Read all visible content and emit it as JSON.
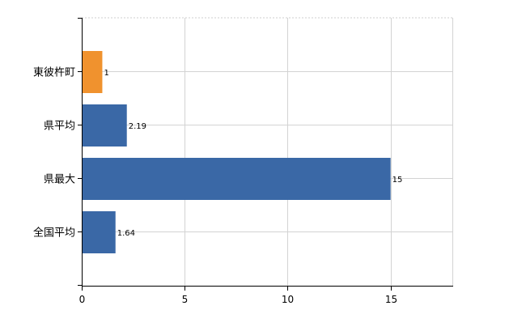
{
  "chart_data": {
    "type": "bar",
    "orientation": "horizontal",
    "categories": [
      "東彼杵町",
      "県平均",
      "県最大",
      "全国平均"
    ],
    "values": [
      1,
      2.19,
      15,
      1.64
    ],
    "data_labels": [
      "1",
      "2.19",
      "15",
      "1.64"
    ],
    "bar_colors": [
      "#f0922e",
      "#3a68a6",
      "#3a68a6",
      "#3a68a6"
    ],
    "xlim": [
      0,
      18
    ],
    "x_ticks": [
      0,
      5,
      10,
      15
    ],
    "x_tick_labels": [
      "0",
      "5",
      "10",
      "15"
    ],
    "grid": true,
    "legend": "none"
  }
}
